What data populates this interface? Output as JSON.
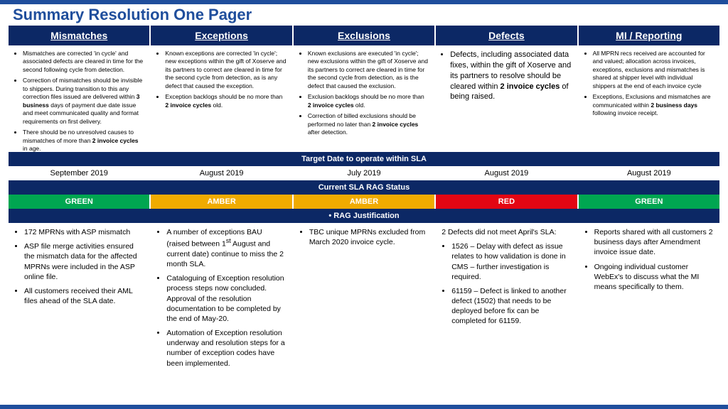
{
  "title": "Summary Resolution One Pager",
  "colors": {
    "navy": "#0c2865",
    "blue": "#1f4e9c",
    "green": "#00a651",
    "amber": "#f0ab00",
    "red": "#e30613"
  },
  "columns": [
    {
      "h": "Mismatches",
      "desc": [
        "Mismatches are corrected 'in cycle' and associated defects are cleared in time for the second following cycle from detection.",
        "Correction of mismatches should be invisible to shippers. During transition to this any correction files issued are delivered within <b>3 business</b> days of payment due date issue and meet communicated quality and format requirements on first delivery.",
        "There should be no unresolved causes to mismatches of more than <b>2 invoice cycles</b> in age."
      ],
      "date": "September 2019",
      "rag": "GREEN",
      "ragc": "green",
      "just": [
        "172 MPRNs with ASP mismatch",
        "ASP file merge activities ensured the mismatch data for the affected MPRNs were included in the ASP online file.",
        "All customers received their AML files ahead of the SLA date."
      ]
    },
    {
      "h": "Exceptions",
      "desc": [
        "Known exceptions are corrected 'in cycle'; new exceptions within the gift of Xoserve and its partners to correct are cleared in time for the second cycle from detection, as is any defect that caused the exception.",
        "Exception backlogs should be no more than <b>2 invoice cycles</b> old."
      ],
      "date": "August 2019",
      "rag": "AMBER",
      "ragc": "amber",
      "just": [
        "A number of exceptions BAU (raised between 1<sup>st</sup> August and current date) continue to miss the 2 month SLA.",
        "Cataloguing of Exception resolution process steps now concluded. Approval of the resolution documentation to be completed by the end of May-20.",
        "Automation of Exception resolution underway and resolution steps for a number of exception codes have been implemented."
      ]
    },
    {
      "h": "Exclusions",
      "desc": [
        "Known exclusions are executed 'in cycle'; new exclusions within the gift of Xoserve and its partners to correct are cleared in time for the second cycle from detection, as is the defect that caused the exclusion.",
        "Exclusion backlogs should be no more than <b>2 invoice cycles</b> old.",
        "Correction of billed exclusions should be performed no later than <b>2 invoice cycles</b> after detection."
      ],
      "date": "July 2019",
      "rag": "AMBER",
      "ragc": "amber",
      "just": [
        "TBC unique MPRNs excluded from March 2020 invoice cycle."
      ]
    },
    {
      "h": "Defects",
      "descbig": true,
      "desc": [
        "Defects, including associated data fixes, within the gift of Xoserve and its partners to resolve should be cleared within <b>2 invoice cycles</b> of being raised."
      ],
      "date": "August 2019",
      "rag": "RED",
      "ragc": "red",
      "justplain": "2 Defects did not meet April's SLA:",
      "just": [
        "1526 – Delay with defect as issue relates to how validation is done in CMS – further investigation is required.",
        "61159 – Defect is linked to another defect (1502) that needs to be deployed before fix can be completed for 61159."
      ]
    },
    {
      "h": "MI / Reporting",
      "desc": [
        "All MPRN recs received are accounted for and valued; allocation across invoices, exceptions, exclusions and mismatches is shared at shipper level with individual shippers at the end of each invoice cycle",
        "Exceptions, Exclusions and mismatches are communicated within <b>2 business days</b> following invoice receipt."
      ],
      "date": "August 2019",
      "rag": "GREEN",
      "ragc": "green",
      "just": [
        "Reports shared with all customers 2 business days after Amendment invoice issue date.",
        "Ongoing individual customer WebEx's to discuss what the MI means specifically to them."
      ]
    }
  ],
  "bands": {
    "b1": "Target Date to operate within SLA",
    "b2": "Current  SLA RAG Status",
    "b3": "•    RAG Justification"
  }
}
